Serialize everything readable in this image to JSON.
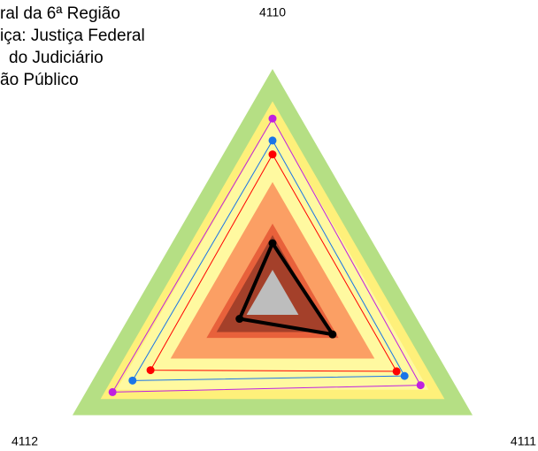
{
  "chart_data": {
    "type": "radar",
    "categories": [
      "4110",
      "4111",
      "4112"
    ],
    "rlim": [
      0,
      100
    ],
    "bands": [
      {
        "color": "#b5df84",
        "value": 100
      },
      {
        "color": "#fef07a",
        "value": 86
      },
      {
        "color": "#fff9a0",
        "value": 78
      },
      {
        "color": "#fb9f64",
        "value": 51
      },
      {
        "color": "#e8613b",
        "value": 33
      },
      {
        "color": "#a4402a",
        "value": 28
      },
      {
        "color": "#bdbdbd",
        "value": 13
      }
    ],
    "series": [
      {
        "name": "ral da 6ª Região",
        "color": "#000000",
        "values": [
          24.5,
          30,
          16.5
        ]
      },
      {
        "name": "iça: Justiça Federal",
        "color": "#ff0000",
        "values": [
          63,
          62,
          61
        ]
      },
      {
        "name": "do Judiciário",
        "color": "#1a75e8",
        "values": [
          69,
          66,
          70
        ]
      },
      {
        "name": "ão Público",
        "color": "#c020e0",
        "values": [
          78.5,
          74,
          80
        ]
      }
    ]
  }
}
